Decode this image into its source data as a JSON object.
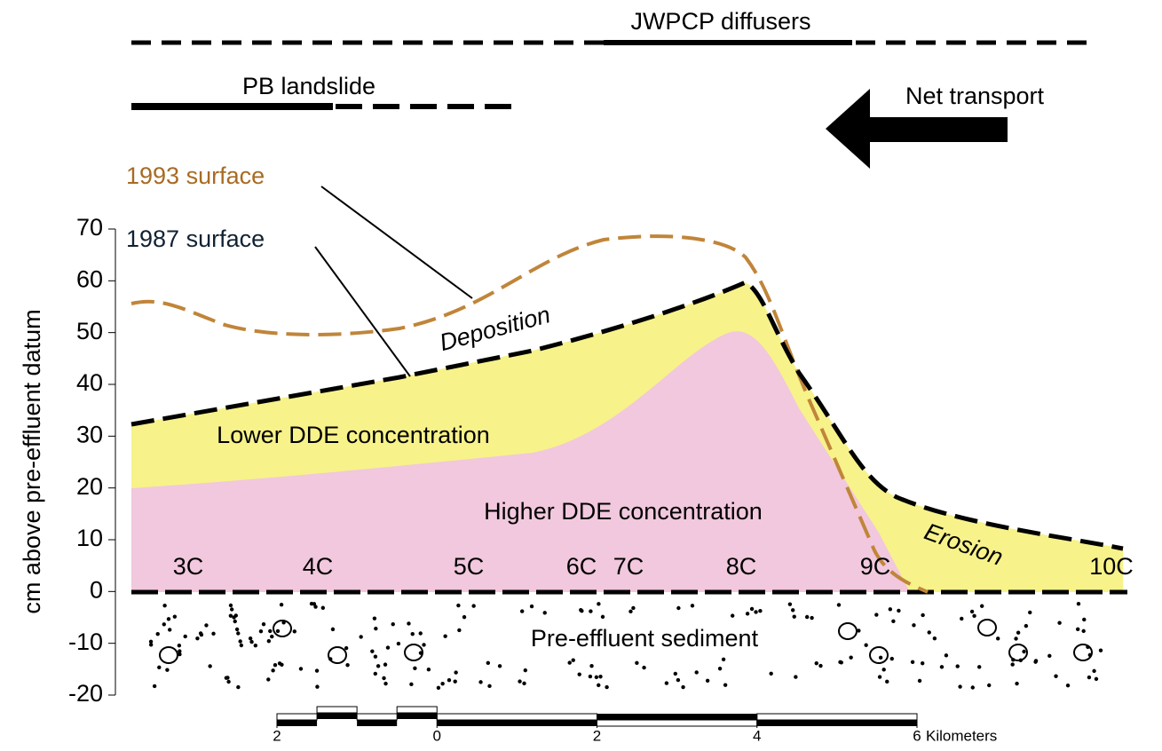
{
  "top_labels": {
    "diffusers": "JWPCP diffusers",
    "landslide": "PB landslide",
    "transport": "Net transport"
  },
  "surfaces": {
    "s1993": "1993 surface",
    "s1987": "1987 surface"
  },
  "regions": {
    "deposition": "Deposition",
    "lower": "Lower DDE concentration",
    "higher": "Higher DDE concentration",
    "erosion": "Erosion",
    "sediment": "Pre-effluent sediment"
  },
  "stations": [
    "3C",
    "4C",
    "5C",
    "6C",
    "7C",
    "8C",
    "9C",
    "10C"
  ],
  "y_axis": {
    "label": "cm above pre-effluent datum",
    "ylim": [
      -20,
      70
    ],
    "yticks": [
      -20,
      -10,
      0,
      10,
      20,
      30,
      40,
      50,
      60,
      70
    ]
  },
  "scale_bar": {
    "unit": "Kilometers",
    "xlim": [
      -2,
      6
    ],
    "ticks": [
      {
        "value": -2,
        "label": "2"
      },
      0,
      2,
      4,
      6
    ]
  }
}
